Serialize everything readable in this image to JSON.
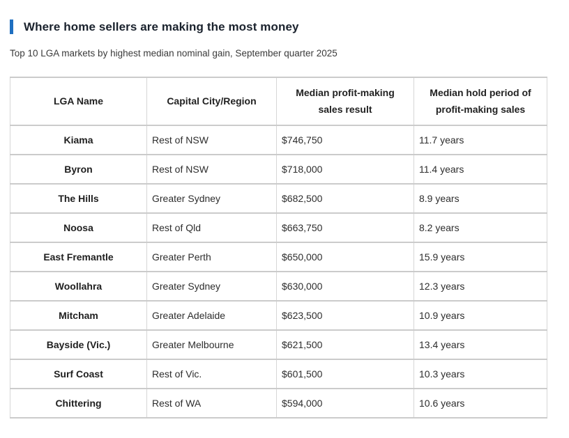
{
  "accent_color": "#1f6fc0",
  "header": {
    "title": "Where home sellers are making the most money",
    "subtitle": "Top 10 LGA markets by highest median nominal gain, September quarter 2025"
  },
  "chart_data": {
    "type": "table",
    "title": "Where home sellers are making the most money",
    "subtitle": "Top 10 LGA markets by highest median nominal gain, September quarter 2025",
    "columns": [
      "LGA Name",
      "Capital City/Region",
      "Median profit-making sales result",
      "Median hold period of profit-making sales"
    ],
    "rows": [
      [
        "Kiama",
        "Rest of NSW",
        "$746,750",
        "11.7 years"
      ],
      [
        "Byron",
        "Rest of NSW",
        "$718,000",
        "11.4 years"
      ],
      [
        "The Hills",
        "Greater Sydney",
        "$682,500",
        "8.9 years"
      ],
      [
        "Noosa",
        "Rest of Qld",
        "$663,750",
        "8.2 years"
      ],
      [
        "East Fremantle",
        "Greater Perth",
        "$650,000",
        "15.9 years"
      ],
      [
        "Woollahra",
        "Greater Sydney",
        "$630,000",
        "12.3 years"
      ],
      [
        "Mitcham",
        "Greater Adelaide",
        "$623,500",
        "10.9 years"
      ],
      [
        "Bayside (Vic.)",
        "Greater Melbourne",
        "$621,500",
        "13.4 years"
      ],
      [
        "Surf Coast",
        "Rest of Vic.",
        "$601,500",
        "10.3 years"
      ],
      [
        "Chittering",
        "Rest of WA",
        "$594,000",
        "10.6 years"
      ]
    ]
  }
}
